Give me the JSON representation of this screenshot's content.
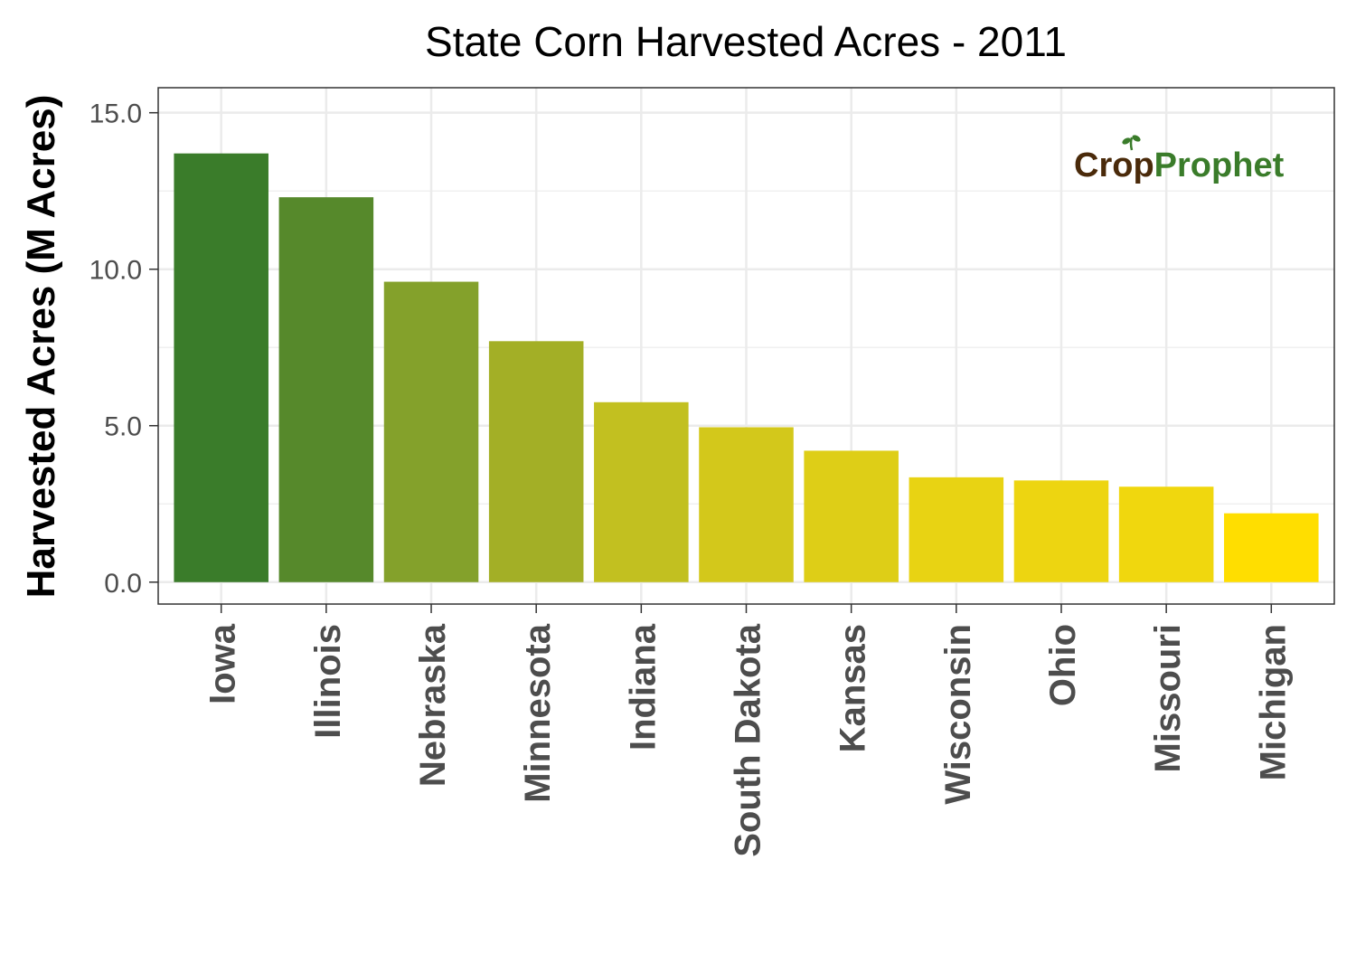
{
  "chart_data": {
    "type": "bar",
    "title": "State Corn Harvested Acres - 2011",
    "xlabel": "",
    "ylabel": "Harvested Acres (M Acres)",
    "categories": [
      "Iowa",
      "Illinois",
      "Nebraska",
      "Minnesota",
      "Indiana",
      "South Dakota",
      "Kansas",
      "Wisconsin",
      "Ohio",
      "Missouri",
      "Michigan"
    ],
    "values": [
      13.7,
      12.3,
      9.6,
      7.7,
      5.75,
      4.95,
      4.2,
      3.35,
      3.25,
      3.05,
      2.2
    ],
    "bar_colors": [
      "#3A7C2A",
      "#56892B",
      "#84A12B",
      "#A3AF26",
      "#C2C020",
      "#D3C81B",
      "#DECE17",
      "#E8D313",
      "#EDD511",
      "#F0D70E",
      "#FFDE00"
    ],
    "ylim": [
      -0.7,
      15.8
    ],
    "yticks": [
      0,
      5,
      10,
      15
    ],
    "ytick_labels": [
      "0.0",
      "5.0",
      "10.0",
      "15.0"
    ],
    "grid": true,
    "legend": "none"
  },
  "watermark": {
    "text_part1": "Cr",
    "text_part2": "p",
    "text_part3": "Prophet",
    "color_dark": "#4A2A0A",
    "color_green": "#3A7C2A"
  }
}
